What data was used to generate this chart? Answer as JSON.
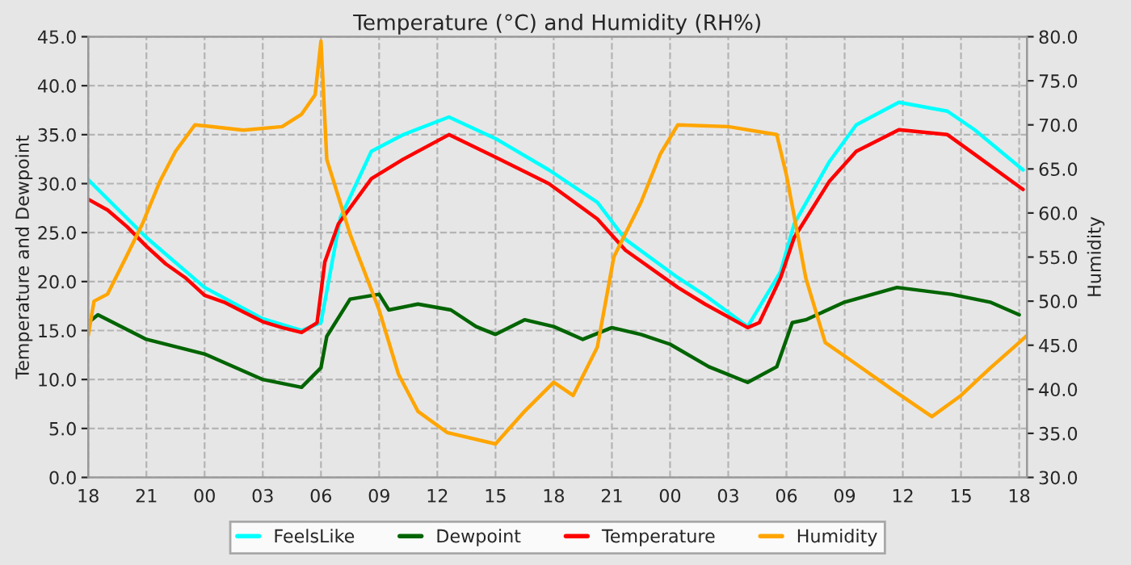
{
  "chart_data": {
    "type": "line",
    "title": "Temperature (°C) and Humidity (RH%)",
    "ylabel": "Temperature and Dewpoint",
    "y2label": "Humidity",
    "xlim": [
      18,
      66.4
    ],
    "xticks": [
      {
        "value": 18,
        "label": "18"
      },
      {
        "value": 21,
        "label": "21"
      },
      {
        "value": 24,
        "label": "00"
      },
      {
        "value": 27,
        "label": "03"
      },
      {
        "value": 30,
        "label": "06"
      },
      {
        "value": 33,
        "label": "09"
      },
      {
        "value": 36,
        "label": "12"
      },
      {
        "value": 39,
        "label": "15"
      },
      {
        "value": 42,
        "label": "18"
      },
      {
        "value": 45,
        "label": "21"
      },
      {
        "value": 48,
        "label": "00"
      },
      {
        "value": 51,
        "label": "03"
      },
      {
        "value": 54,
        "label": "06"
      },
      {
        "value": 57,
        "label": "09"
      },
      {
        "value": 60,
        "label": "12"
      },
      {
        "value": 63,
        "label": "15"
      },
      {
        "value": 66,
        "label": "18"
      }
    ],
    "ylim": [
      0,
      45
    ],
    "yticks": [
      {
        "value": 0,
        "label": "0.0"
      },
      {
        "value": 5,
        "label": "5.0"
      },
      {
        "value": 10,
        "label": "10.0"
      },
      {
        "value": 15,
        "label": "15.0"
      },
      {
        "value": 20,
        "label": "20.0"
      },
      {
        "value": 25,
        "label": "25.0"
      },
      {
        "value": 30,
        "label": "30.0"
      },
      {
        "value": 35,
        "label": "35.0"
      },
      {
        "value": 40,
        "label": "40.0"
      },
      {
        "value": 45,
        "label": "45.0"
      }
    ],
    "y2lim": [
      30,
      80
    ],
    "y2ticks": [
      {
        "value": 30,
        "label": "30.0"
      },
      {
        "value": 35,
        "label": "35.0"
      },
      {
        "value": 40,
        "label": "40.0"
      },
      {
        "value": 45,
        "label": "45.0"
      },
      {
        "value": 50,
        "label": "50.0"
      },
      {
        "value": 55,
        "label": "55.0"
      },
      {
        "value": 60,
        "label": "60.0"
      },
      {
        "value": 65,
        "label": "65.0"
      },
      {
        "value": 70,
        "label": "70.0"
      },
      {
        "value": 75,
        "label": "75.0"
      },
      {
        "value": 80,
        "label": "80.0"
      }
    ],
    "grid": true,
    "legend": "bottom",
    "series": [
      {
        "name": "FeelsLike",
        "color": "#00ffff",
        "x": [
          18,
          21,
          24,
          27,
          29,
          30,
          31,
          32.6,
          34.25,
          36.6,
          39,
          41.75,
          44.25,
          45.7,
          48.4,
          49.8,
          52,
          53.7,
          54.4,
          56.2,
          57.6,
          59.8,
          62.3,
          63.7,
          66.2
        ],
        "values": [
          30.4,
          24.5,
          19.4,
          16.2,
          15.0,
          15.8,
          26.5,
          33.3,
          35.0,
          36.8,
          34.6,
          31.4,
          28.1,
          24.3,
          20.4,
          18.6,
          15.4,
          21.0,
          25.9,
          32.2,
          36.0,
          38.3,
          37.4,
          35.5,
          31.4
        ]
      },
      {
        "name": "Dewpoint",
        "color": "#006400",
        "x": [
          18,
          18.5,
          21,
          24,
          27,
          29,
          30,
          30.3,
          31.5,
          33,
          33.5,
          35,
          36.7,
          38,
          39,
          40.5,
          42,
          43.5,
          45,
          46.5,
          48,
          50,
          52,
          53.5,
          54.3,
          55,
          57,
          59.7,
          62.5,
          64.5,
          66
        ],
        "values": [
          15.8,
          16.6,
          14.1,
          12.6,
          10.0,
          9.2,
          11.2,
          14.4,
          18.2,
          18.7,
          17.1,
          17.7,
          17.1,
          15.4,
          14.6,
          16.1,
          15.4,
          14.1,
          15.3,
          14.6,
          13.6,
          11.3,
          9.7,
          11.3,
          15.8,
          16.1,
          17.9,
          19.4,
          18.7,
          17.9,
          16.6
        ]
      },
      {
        "name": "Temperature",
        "color": "#ff0000",
        "x": [
          18,
          19,
          20,
          21,
          22,
          23,
          24,
          25,
          26,
          27,
          28,
          29,
          29.8,
          30.2,
          30.9,
          32.6,
          34.25,
          36.6,
          39,
          41.75,
          44.25,
          45.7,
          48.4,
          49.8,
          52,
          52.6,
          53.7,
          54.4,
          56.2,
          57.6,
          59.8,
          62.3,
          63.7,
          66.2
        ],
        "values": [
          28.4,
          27.3,
          25.6,
          23.6,
          21.8,
          20.4,
          18.6,
          17.9,
          16.9,
          15.9,
          15.3,
          14.8,
          15.8,
          22.0,
          25.9,
          30.5,
          32.5,
          35.0,
          32.7,
          30.0,
          26.4,
          23.2,
          19.4,
          17.7,
          15.3,
          15.8,
          20.4,
          24.5,
          30.2,
          33.3,
          35.5,
          35.0,
          33.0,
          29.4
        ]
      },
      {
        "name": "Humidity",
        "color": "#ffa500",
        "axis": "y2",
        "x": [
          18,
          18.3,
          19,
          20,
          20.8,
          21.7,
          22.5,
          23.5,
          26,
          28,
          29,
          29.7,
          30,
          30.3,
          31.5,
          33,
          34,
          35,
          36.5,
          39,
          40.5,
          42,
          43,
          44.25,
          45.1,
          46.5,
          47.5,
          48.4,
          51,
          53.5,
          54,
          55,
          56,
          57.5,
          59.5,
          61.5,
          63,
          64.5,
          66,
          66.4
        ],
        "values": [
          46.1,
          50.0,
          50.8,
          55.2,
          58.8,
          63.6,
          67.0,
          70.0,
          69.4,
          69.8,
          71.2,
          73.4,
          79.5,
          66.1,
          57.6,
          49.0,
          41.7,
          37.5,
          35.1,
          33.8,
          37.5,
          40.8,
          39.3,
          44.8,
          55.0,
          61.2,
          66.7,
          70.0,
          69.8,
          68.9,
          64.3,
          52.6,
          45.3,
          43.0,
          39.9,
          36.9,
          39.3,
          42.4,
          45.3,
          46.1
        ]
      }
    ]
  }
}
